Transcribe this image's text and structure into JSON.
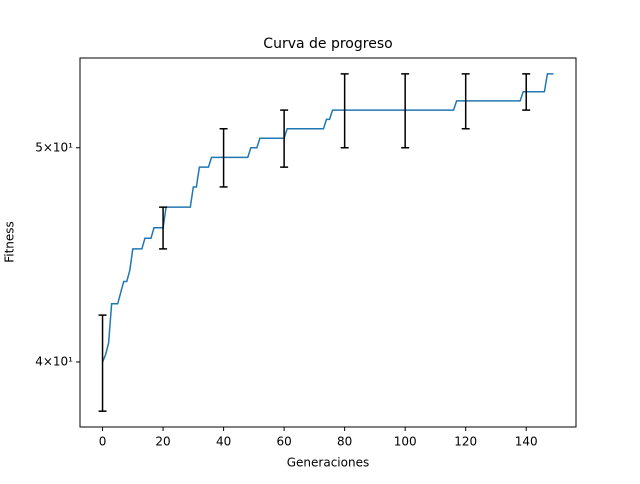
{
  "chart_data": {
    "type": "line",
    "title": "Curva de progreso",
    "x_label": "Generaciones",
    "y_label": "Fitness",
    "x": [
      0,
      1,
      2,
      3,
      4,
      5,
      6,
      7,
      8,
      9,
      10,
      11,
      12,
      13,
      14,
      15,
      16,
      17,
      18,
      19,
      20,
      21,
      22,
      23,
      24,
      25,
      26,
      27,
      28,
      29,
      30,
      31,
      32,
      33,
      34,
      35,
      36,
      37,
      38,
      39,
      40,
      41,
      42,
      43,
      44,
      45,
      46,
      47,
      48,
      49,
      50,
      51,
      52,
      53,
      54,
      55,
      56,
      57,
      58,
      59,
      60,
      61,
      62,
      63,
      64,
      65,
      66,
      67,
      68,
      69,
      70,
      71,
      72,
      73,
      74,
      75,
      76,
      77,
      78,
      79,
      80,
      81,
      82,
      83,
      84,
      85,
      86,
      87,
      88,
      89,
      90,
      91,
      92,
      93,
      94,
      95,
      96,
      97,
      98,
      99,
      100,
      101,
      102,
      103,
      104,
      105,
      106,
      107,
      108,
      109,
      110,
      111,
      112,
      113,
      114,
      115,
      116,
      117,
      118,
      119,
      120,
      121,
      122,
      123,
      124,
      125,
      126,
      127,
      128,
      129,
      130,
      131,
      132,
      133,
      134,
      135,
      136,
      137,
      138,
      139,
      140,
      141,
      142,
      143,
      144,
      145,
      146,
      147,
      148,
      149
    ],
    "values": [
      40,
      40.3,
      40.8,
      42.5,
      42.5,
      42.5,
      43,
      43.5,
      43.5,
      44,
      45,
      45,
      45,
      45,
      45.5,
      45.5,
      45.5,
      46,
      46,
      46,
      46,
      47,
      47,
      47,
      47,
      47,
      47,
      47,
      47,
      47,
      48,
      48,
      49,
      49,
      49,
      49,
      49.5,
      49.5,
      49.5,
      49.5,
      49.5,
      49.5,
      49.5,
      49.5,
      49.5,
      49.5,
      49.5,
      49.5,
      49.5,
      50,
      50,
      50,
      50.5,
      50.5,
      50.5,
      50.5,
      50.5,
      50.5,
      50.5,
      50.5,
      50.5,
      51,
      51,
      51,
      51,
      51,
      51,
      51,
      51,
      51,
      51,
      51,
      51,
      51,
      51.5,
      51.5,
      52,
      52,
      52,
      52,
      52,
      52,
      52,
      52,
      52,
      52,
      52,
      52,
      52,
      52,
      52,
      52,
      52,
      52,
      52,
      52,
      52,
      52,
      52,
      52,
      52,
      52,
      52,
      52,
      52,
      52,
      52,
      52,
      52,
      52,
      52,
      52,
      52,
      52,
      52,
      52,
      52,
      52.5,
      52.5,
      52.5,
      52.5,
      52.5,
      52.5,
      52.5,
      52.5,
      52.5,
      52.5,
      52.5,
      52.5,
      52.5,
      52.5,
      52.5,
      52.5,
      52.5,
      52.5,
      52.5,
      52.5,
      52.5,
      52.5,
      53,
      53,
      53,
      53,
      53,
      53,
      53,
      53,
      54,
      54,
      54
    ],
    "color": "#1f77b4",
    "error_bars": {
      "x": [
        0,
        20,
        40,
        60,
        80,
        100,
        120,
        140
      ],
      "values": [
        40,
        46,
        49.5,
        50.5,
        52,
        52,
        52.5,
        53
      ],
      "errors": [
        2,
        1,
        1.5,
        1.5,
        2,
        2,
        1.5,
        1
      ],
      "color": "#000000"
    },
    "xlim": [
      -7.45,
      156.45
    ],
    "xticks": [
      0,
      20,
      40,
      60,
      80,
      100,
      120,
      140
    ],
    "ylim": [
      37.38,
      54.9
    ],
    "y_scale": "log",
    "yticks": [
      {
        "value": 40,
        "label": "4×10¹"
      },
      {
        "value": 50,
        "label": "5×10¹"
      }
    ]
  }
}
